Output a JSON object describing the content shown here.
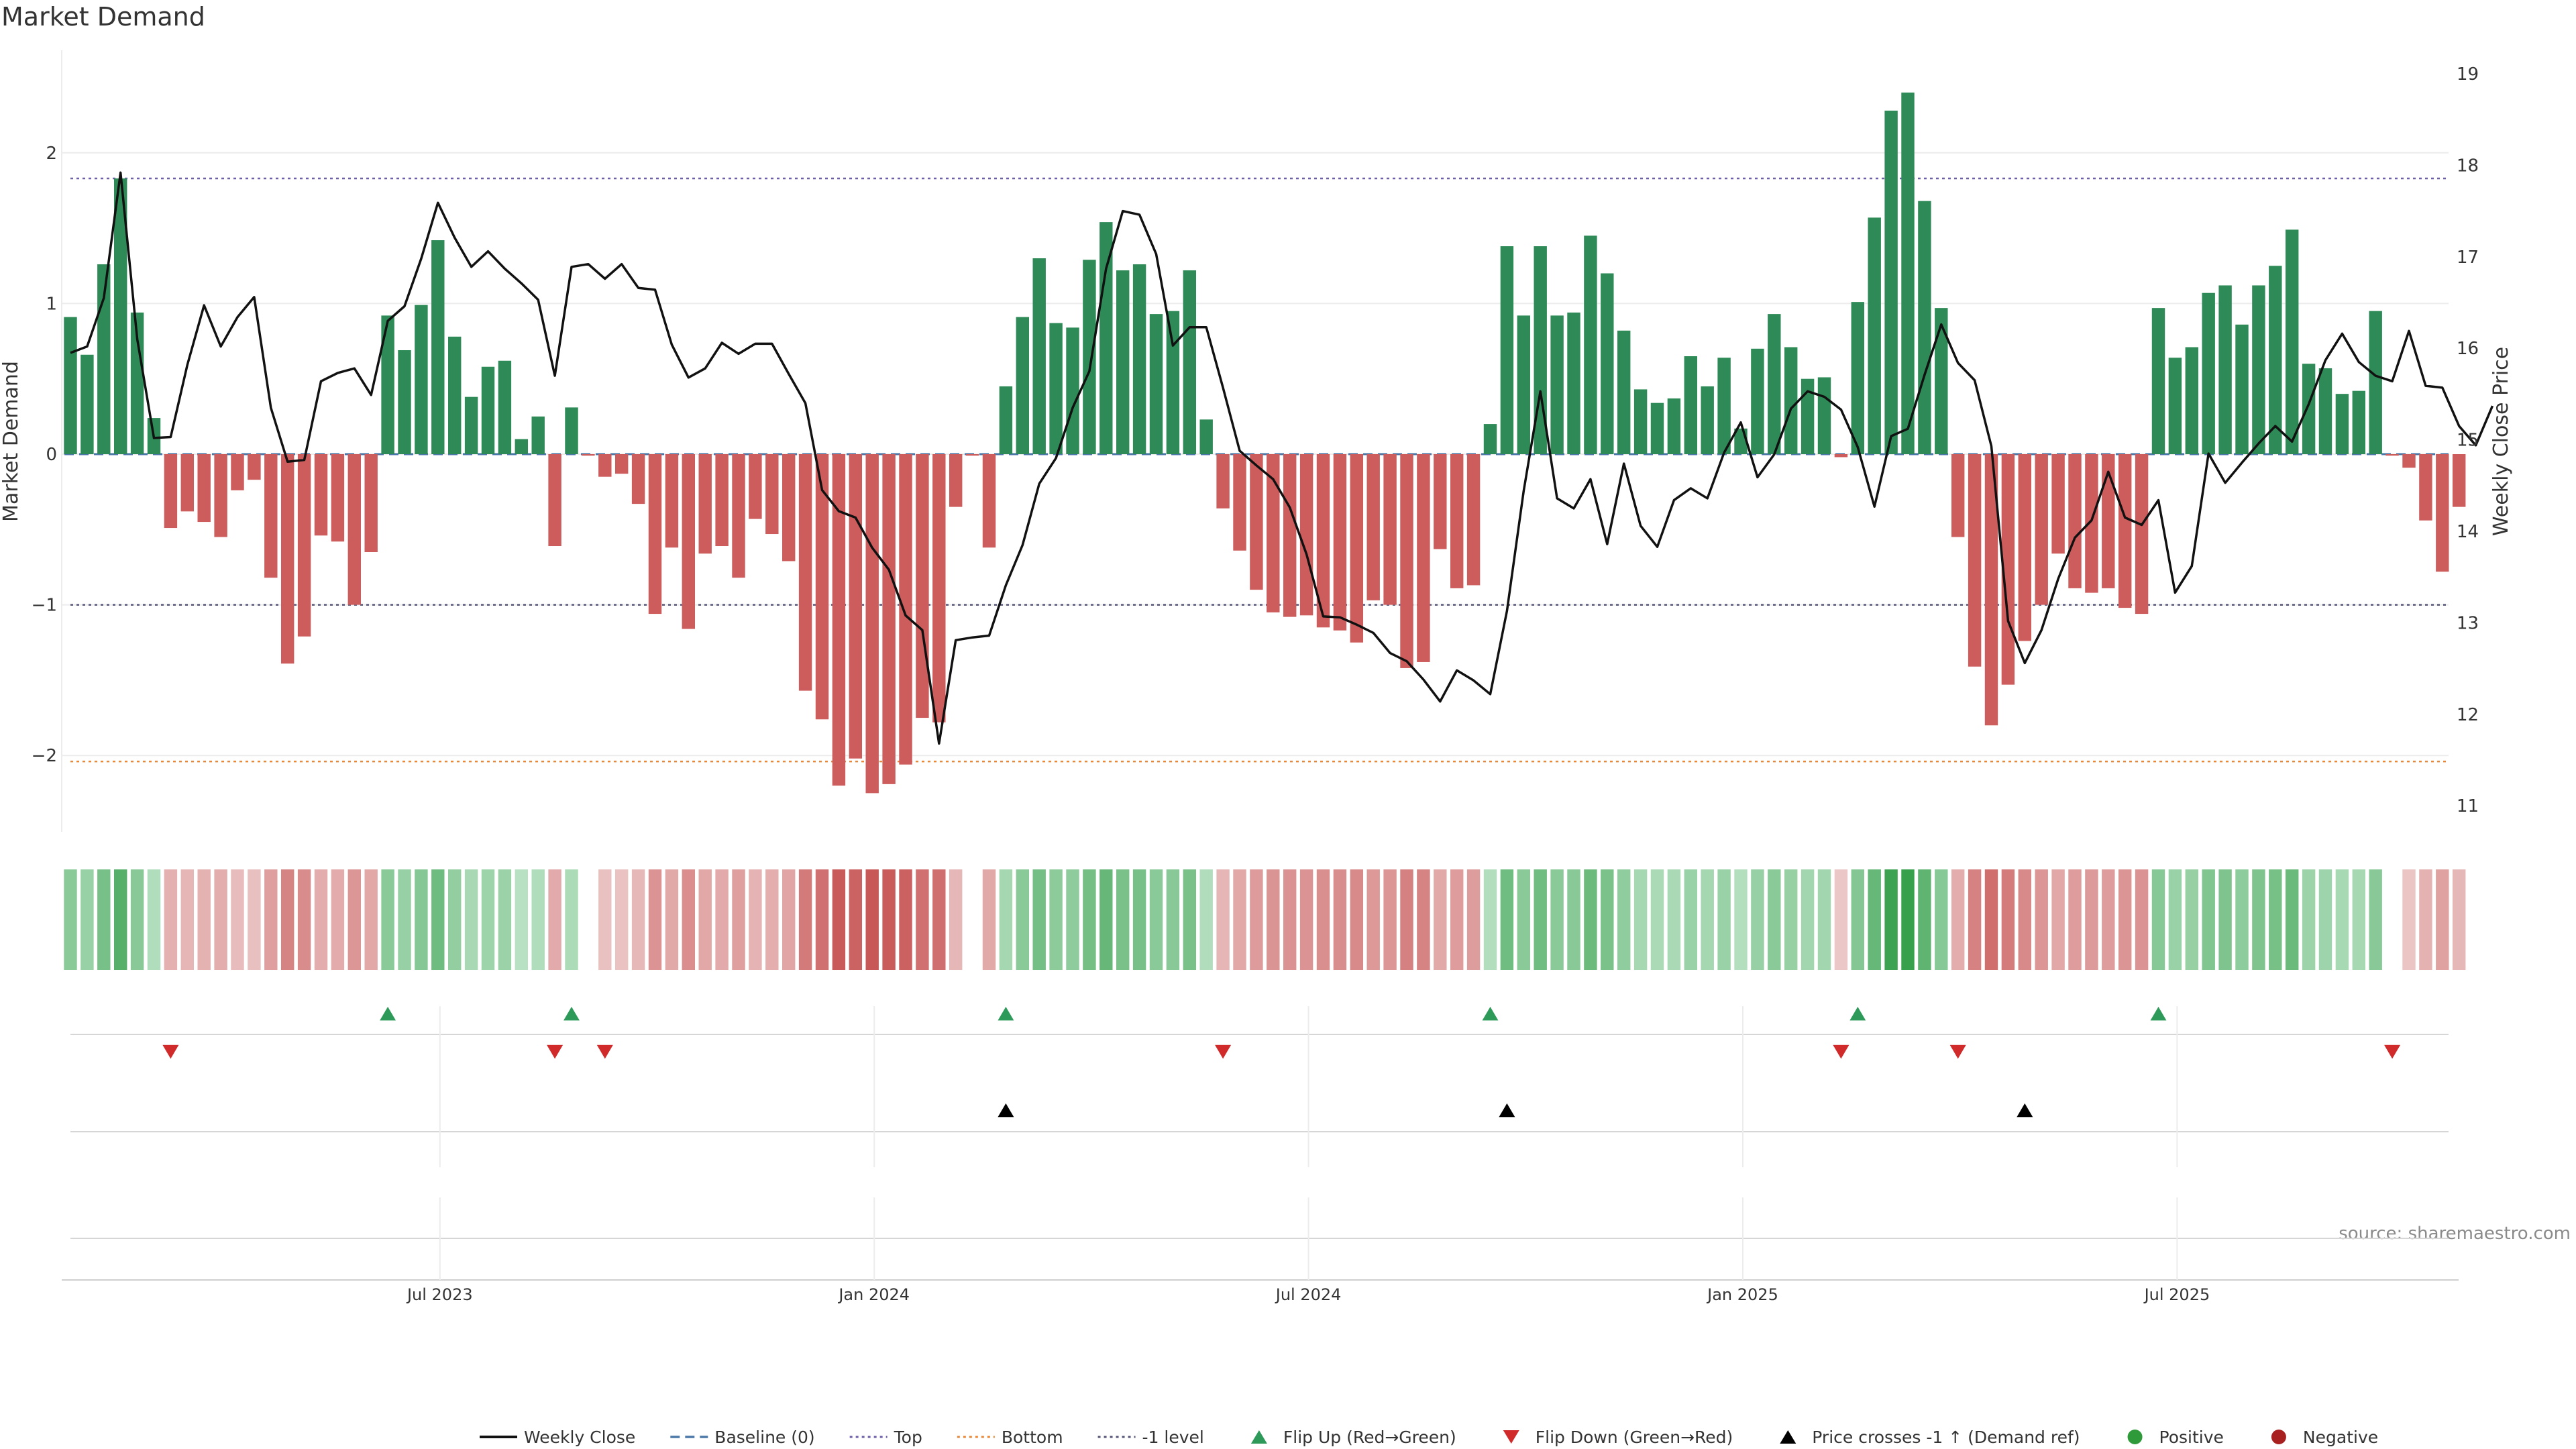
{
  "chart_data": {
    "type": "bar",
    "title": "Market Demand",
    "ylabel_left": "Market Demand",
    "ylabel_right": "Weekly Close Price",
    "source": "source: sharemaestro.com",
    "ylim_left": [
      -2.5,
      2.65
    ],
    "ylim_right": [
      10.75,
      19.2
    ],
    "left_ticks": [
      {
        "v": 2,
        "label": "2"
      },
      {
        "v": 1,
        "label": "1"
      },
      {
        "v": 0,
        "label": "0"
      },
      {
        "v": -1,
        "label": "−1"
      },
      {
        "v": -2,
        "label": "−2"
      }
    ],
    "right_ticks": [
      {
        "v": 19,
        "label": "19"
      },
      {
        "v": 18,
        "label": "18"
      },
      {
        "v": 17,
        "label": "17"
      },
      {
        "v": 16,
        "label": "16"
      },
      {
        "v": 15,
        "label": "15"
      },
      {
        "v": 14,
        "label": "14"
      },
      {
        "v": 13,
        "label": "13"
      },
      {
        "v": 12,
        "label": "12"
      },
      {
        "v": 11,
        "label": "11"
      }
    ],
    "ref_lines": {
      "top": 1.83,
      "bottom": -2.04,
      "minus_one": -1.0,
      "baseline": 0
    },
    "x_ticks": [
      {
        "week": 22,
        "label": "Jul 2023"
      },
      {
        "week": 48,
        "label": "Jan 2024"
      },
      {
        "week": 74,
        "label": "Jul 2024"
      },
      {
        "week": 100,
        "label": "Jan 2025"
      },
      {
        "week": 126,
        "label": "Jul 2025"
      }
    ],
    "demand": [
      0.91,
      0.66,
      1.26,
      1.83,
      0.94,
      0.24,
      -0.49,
      -0.38,
      -0.45,
      -0.55,
      -0.24,
      -0.17,
      -0.82,
      -1.39,
      -1.21,
      -0.54,
      -0.58,
      -1.0,
      -0.65,
      0.92,
      0.69,
      0.99,
      1.42,
      0.78,
      0.38,
      0.58,
      0.62,
      0.1,
      0.25,
      -0.61,
      0.31,
      -0.01,
      -0.15,
      -0.13,
      -0.33,
      -1.06,
      -0.62,
      -1.16,
      -0.66,
      -0.61,
      -0.82,
      -0.43,
      -0.53,
      -0.71,
      -1.57,
      -1.76,
      -2.2,
      -2.02,
      -2.25,
      -2.19,
      -2.06,
      -1.75,
      -1.78,
      -0.35,
      -0.01,
      -0.62,
      0.45,
      0.91,
      1.3,
      0.87,
      0.84,
      1.29,
      1.54,
      1.22,
      1.26,
      0.93,
      0.95,
      1.22,
      0.23,
      -0.36,
      -0.64,
      -0.9,
      -1.05,
      -1.08,
      -1.07,
      -1.15,
      -1.17,
      -1.25,
      -0.97,
      -1.0,
      -1.42,
      -1.38,
      -0.63,
      -0.89,
      -0.87,
      0.2,
      1.38,
      0.92,
      1.38,
      0.92,
      0.94,
      1.45,
      1.2,
      0.82,
      0.43,
      0.34,
      0.37,
      0.65,
      0.45,
      0.64,
      0.17,
      0.7,
      0.93,
      0.71,
      0.5,
      0.51,
      -0.02,
      1.01,
      1.57,
      2.28,
      2.4,
      1.68,
      0.97,
      -0.55,
      -1.41,
      -1.8,
      -1.53,
      -1.24,
      -1.0,
      -0.66,
      -0.89,
      -0.92,
      -0.89,
      -1.02,
      -1.06,
      0.97,
      0.64,
      0.71,
      1.07,
      1.12,
      0.86,
      1.12,
      1.25,
      1.49,
      0.6,
      0.57,
      0.4,
      0.42,
      0.95,
      -0.01,
      -0.09,
      -0.44,
      -0.78,
      -0.35
    ],
    "close": [
      15.95,
      16.02,
      16.55,
      17.92,
      16.1,
      15.02,
      15.03,
      15.82,
      16.47,
      16.02,
      16.34,
      16.56,
      15.35,
      14.76,
      14.78,
      15.64,
      15.73,
      15.78,
      15.49,
      16.3,
      16.46,
      16.98,
      17.59,
      17.21,
      16.89,
      17.06,
      16.87,
      16.71,
      16.53,
      15.7,
      16.89,
      16.92,
      16.76,
      16.92,
      16.66,
      16.64,
      16.04,
      15.68,
      15.78,
      16.06,
      15.94,
      16.05,
      16.05,
      15.72,
      15.4,
      14.45,
      14.22,
      14.15,
      13.82,
      13.58,
      13.08,
      12.92,
      11.68,
      12.81,
      12.84,
      12.86,
      13.41,
      13.85,
      14.52,
      14.8,
      15.35,
      15.75,
      16.87,
      17.5,
      17.46,
      17.03,
      16.03,
      16.23,
      16.23,
      15.57,
      14.88,
      14.72,
      14.57,
      14.26,
      13.75,
      13.07,
      13.06,
      12.98,
      12.89,
      12.67,
      12.58,
      12.38,
      12.14,
      12.48,
      12.37,
      12.22,
      13.13,
      14.44,
      15.53,
      14.36,
      14.25,
      14.57,
      13.86,
      14.74,
      14.06,
      13.83,
      14.34,
      14.47,
      14.36,
      14.86,
      15.19,
      14.59,
      14.84,
      15.34,
      15.53,
      15.47,
      15.33,
      14.92,
      14.27,
      15.04,
      15.12,
      15.71,
      16.26,
      15.84,
      15.65,
      14.93,
      13.02,
      12.56,
      12.92,
      13.48,
      13.93,
      14.12,
      14.65,
      14.15,
      14.07,
      14.34,
      13.33,
      13.62,
      14.85,
      14.53,
      14.75,
      14.96,
      15.15,
      14.98,
      15.39,
      15.87,
      16.16,
      15.85,
      15.7,
      15.64,
      16.19,
      15.59,
      15.57,
      15.15,
      14.94,
      15.37
    ],
    "flip_up_weeks": [
      19,
      30,
      56,
      85,
      107,
      125
    ],
    "flip_down_weeks": [
      6,
      29,
      32,
      69,
      106,
      113,
      139
    ],
    "price_cross_weeks": [
      56,
      86,
      117
    ],
    "legend": [
      {
        "label": "Weekly Close",
        "kind": "line",
        "color": "#111111"
      },
      {
        "label": "Baseline (0)",
        "kind": "dash",
        "color": "#4c78a8"
      },
      {
        "label": "Top",
        "kind": "dot",
        "color": "#6f5ea8"
      },
      {
        "label": "Bottom",
        "kind": "dot",
        "color": "#e8893a"
      },
      {
        "label": "-1 level",
        "kind": "dot",
        "color": "#555577"
      },
      {
        "label": "Flip Up (Red→Green)",
        "kind": "tri-up",
        "color": "#2e9a5a"
      },
      {
        "label": "Flip Down (Green→Red)",
        "kind": "tri-down",
        "color": "#d02a2a"
      },
      {
        "label": "Price crosses -1 ↑ (Demand ref)",
        "kind": "tri-up",
        "color": "#000000"
      },
      {
        "label": "Positive",
        "kind": "dot-fill",
        "color": "#2e9a3a"
      },
      {
        "label": "Negative",
        "kind": "dot-fill",
        "color": "#a82020"
      }
    ],
    "colors": {
      "positive": "#2e8b57",
      "negative": "#cd5c5c",
      "price": "#111111",
      "flip_up": "#2e9a5a",
      "flip_down": "#d02a2a",
      "cross": "#000000"
    }
  }
}
